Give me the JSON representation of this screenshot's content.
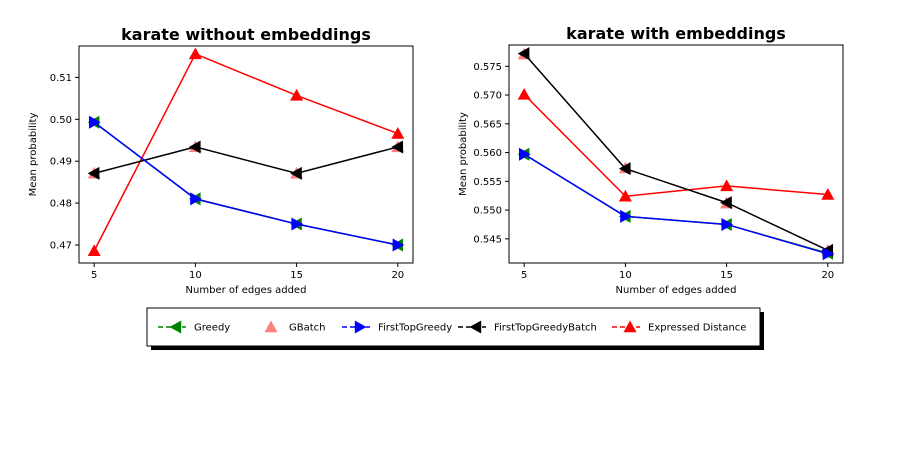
{
  "legend": {
    "entries": [
      {
        "label": "Greedy",
        "color": "#008000",
        "marker": "triangle-left",
        "line": "dashed"
      },
      {
        "label": "GBatch",
        "color": "#ff7f7f",
        "marker": "triangle-up",
        "line": "none"
      },
      {
        "label": "FirstTopGreedy",
        "color": "#0000ff",
        "marker": "triangle-right",
        "line": "dashed"
      },
      {
        "label": "FirstTopGreedyBatch",
        "color": "#000000",
        "marker": "triangle-left",
        "line": "dashed"
      },
      {
        "label": "Expressed Distance",
        "color": "#ff0000",
        "marker": "triangle-up",
        "line": "dashed"
      }
    ],
    "placement": "bottom-center",
    "shadow": true
  },
  "chart_data": [
    {
      "type": "line",
      "title": "karate without embeddings",
      "xlabel": "Number of edges added",
      "ylabel": "Mean probability",
      "x": [
        5,
        10,
        15,
        20
      ],
      "xticks": [
        "5",
        "10",
        "15",
        "20"
      ],
      "yticks": [
        "0.47",
        "0.48",
        "0.49",
        "0.50",
        "0.51"
      ],
      "xlim": [
        4.25,
        20.75
      ],
      "ylim": [
        0.4657,
        0.5175
      ],
      "grid": false,
      "series": [
        {
          "name": "Greedy",
          "color": "#008000",
          "marker": "triangle-left",
          "values": [
            0.4993,
            0.481,
            0.475,
            0.47
          ]
        },
        {
          "name": "GBatch",
          "color": "#ff7f7f",
          "marker": "triangle-up",
          "values": [
            0.4871,
            0.4934,
            0.4871,
            0.4934
          ]
        },
        {
          "name": "FirstTopGreedy",
          "color": "#0000ff",
          "marker": "triangle-right",
          "values": [
            0.4993,
            0.481,
            0.475,
            0.47
          ]
        },
        {
          "name": "FirstTopGreedyBatch",
          "color": "#000000",
          "marker": "triangle-left",
          "values": [
            0.4871,
            0.4934,
            0.4871,
            0.4934
          ]
        },
        {
          "name": "Expressed Distance",
          "color": "#ff0000",
          "marker": "triangle-up",
          "values": [
            0.4686,
            0.5156,
            0.5057,
            0.4966
          ]
        }
      ]
    },
    {
      "type": "line",
      "title": "karate with embeddings",
      "xlabel": "Number of edges added",
      "ylabel": "Mean probability",
      "x": [
        5,
        10,
        15,
        20
      ],
      "xticks": [
        "5",
        "10",
        "15",
        "20"
      ],
      "yticks": [
        "0.545",
        "0.550",
        "0.555",
        "0.560",
        "0.565",
        "0.570",
        "0.575"
      ],
      "xlim": [
        4.25,
        20.75
      ],
      "ylim": [
        0.5408,
        0.5787
      ],
      "grid": false,
      "series": [
        {
          "name": "Greedy",
          "color": "#008000",
          "marker": "triangle-left",
          "values": [
            0.5597,
            0.5489,
            0.5475,
            0.5425
          ]
        },
        {
          "name": "GBatch",
          "color": "#ff7f7f",
          "marker": "triangle-up",
          "values": [
            0.5771,
            0.5573,
            0.5512,
            0.543
          ]
        },
        {
          "name": "FirstTopGreedy",
          "color": "#0000ff",
          "marker": "triangle-right",
          "values": [
            0.5597,
            0.5489,
            0.5475,
            0.5424
          ]
        },
        {
          "name": "FirstTopGreedyBatch",
          "color": "#000000",
          "marker": "triangle-left",
          "values": [
            0.5772,
            0.5572,
            0.5513,
            0.543
          ]
        },
        {
          "name": "Expressed Distance",
          "color": "#ff0000",
          "marker": "triangle-up",
          "values": [
            0.5701,
            0.5524,
            0.5542,
            0.5527
          ]
        }
      ]
    }
  ]
}
